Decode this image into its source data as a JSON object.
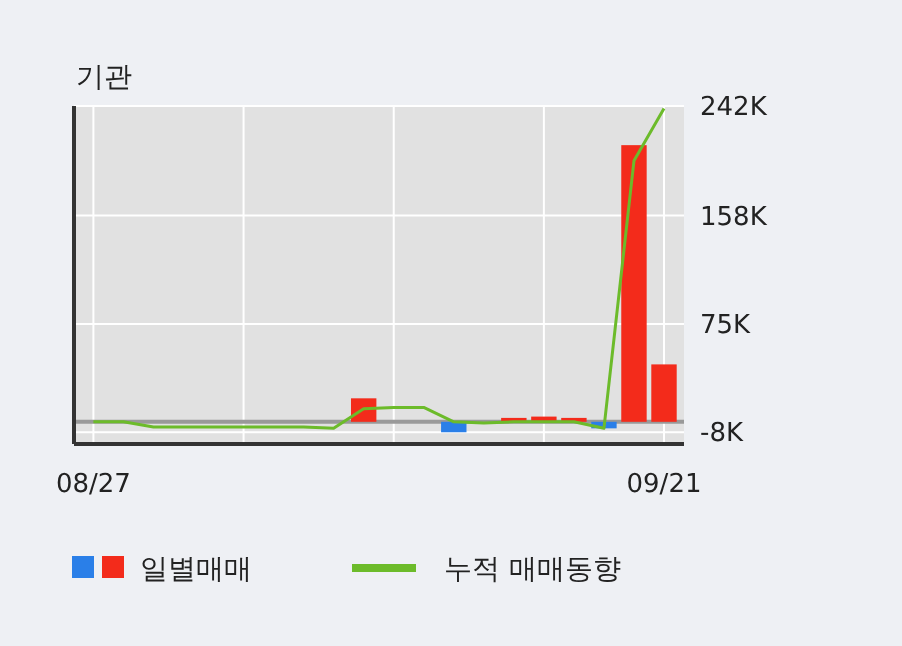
{
  "chart_data": {
    "type": "bar",
    "title": "기관",
    "categories": [
      "08/27",
      null,
      null,
      null,
      null,
      null,
      null,
      null,
      null,
      null,
      null,
      null,
      null,
      null,
      null,
      null,
      null,
      null,
      null,
      "09/21"
    ],
    "series": [
      {
        "name": "일별매매",
        "colors": [
          null,
          null,
          null,
          null,
          null,
          null,
          null,
          null,
          null,
          "#f32b1b",
          null,
          null,
          "#2a7fe8",
          null,
          "#f32b1b",
          "#f32b1b",
          "#f32b1b",
          "#2a7fe8",
          "#f32b1b",
          "#f32b1b"
        ],
        "values": [
          null,
          null,
          null,
          null,
          null,
          null,
          null,
          null,
          null,
          18000,
          null,
          null,
          -8000,
          null,
          3000,
          4000,
          3000,
          -5000,
          212000,
          44000
        ]
      },
      {
        "name": "누적 매매동향",
        "type": "line",
        "color": "#6cbb2a",
        "values": [
          0,
          0,
          -4000,
          -4000,
          -4000,
          -4000,
          -4000,
          -4000,
          -5000,
          10000,
          11000,
          11000,
          0,
          -1000,
          0,
          0,
          0,
          -5000,
          200000,
          240000
        ]
      }
    ],
    "ylim": [
      -17000,
      242000
    ],
    "yticks": [
      {
        "value": 242000,
        "label": "242K"
      },
      {
        "value": 158000,
        "label": "158K"
      },
      {
        "value": 75000,
        "label": "75K"
      },
      {
        "value": -8000,
        "label": "-8K"
      }
    ],
    "ref_lines": [
      {
        "axis": "y",
        "value": 0,
        "color": "#999999"
      }
    ],
    "grid": true,
    "legend": "bottom"
  }
}
